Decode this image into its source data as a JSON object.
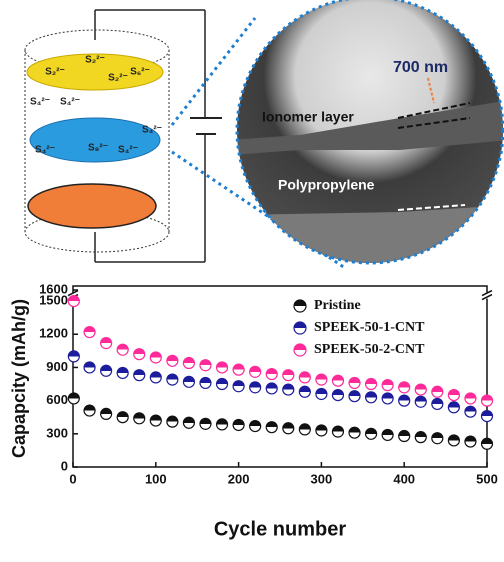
{
  "schematic": {
    "ions": [
      "S₂²⁻",
      "S₂²⁻",
      "S₄²⁻",
      "S₂²⁻",
      "S₆²⁻",
      "S₄²⁻",
      "S₄²⁻",
      "S₈²⁻",
      "S₄²⁻",
      "S₄²⁻"
    ]
  },
  "micrograph": {
    "scale": "700 nm",
    "top_layer": "Ionomer layer",
    "bottom_layer": "Polypropylene"
  },
  "chart_data": {
    "type": "scatter",
    "x_label": "Cycle number",
    "y_label": "Capapcity (mAh/g)",
    "xlim": [
      0,
      500
    ],
    "xticks": [
      0,
      100,
      200,
      300,
      400,
      500
    ],
    "ylim": [
      0,
      1600
    ],
    "yticks": [
      0,
      300,
      600,
      900,
      1200,
      1500,
      1600
    ],
    "legend": "upper right",
    "x": [
      1,
      20,
      40,
      60,
      80,
      100,
      120,
      140,
      160,
      180,
      200,
      220,
      240,
      260,
      280,
      300,
      320,
      340,
      360,
      380,
      400,
      420,
      440,
      460,
      480,
      500
    ],
    "series": [
      {
        "name": "Pristine",
        "color": "#111111",
        "values": [
          620,
          510,
          480,
          450,
          440,
          420,
          410,
          400,
          390,
          385,
          380,
          370,
          360,
          350,
          340,
          330,
          320,
          310,
          300,
          290,
          280,
          270,
          260,
          240,
          230,
          210
        ]
      },
      {
        "name": "SPEEK-50-1-CNT",
        "color": "#1c1c9c",
        "values": [
          1000,
          900,
          870,
          850,
          830,
          810,
          790,
          770,
          760,
          750,
          730,
          720,
          710,
          700,
          680,
          660,
          650,
          640,
          630,
          620,
          600,
          590,
          570,
          540,
          500,
          460
        ]
      },
      {
        "name": "SPEEK-50-2-CNT",
        "color": "#ff2a9a",
        "values": [
          1500,
          1220,
          1120,
          1060,
          1020,
          990,
          960,
          940,
          920,
          900,
          880,
          860,
          840,
          830,
          810,
          790,
          780,
          760,
          750,
          740,
          720,
          700,
          680,
          650,
          620,
          600
        ]
      }
    ]
  }
}
